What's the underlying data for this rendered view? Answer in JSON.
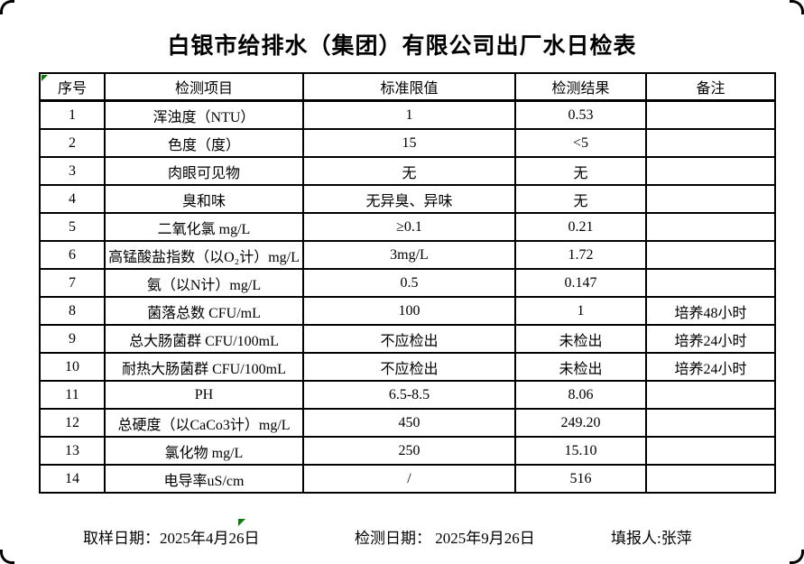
{
  "title": "白银市给排水（集团）有限公司出厂水日检表",
  "table": {
    "columns": [
      "序号",
      "检测项目",
      "标准限值",
      "检测结果",
      "备注"
    ],
    "rows": [
      [
        "1",
        "浑浊度（NTU）",
        "1",
        "0.53",
        ""
      ],
      [
        "2",
        "色度（度）",
        "15",
        "<5",
        ""
      ],
      [
        "3",
        "肉眼可见物",
        "无",
        "无",
        ""
      ],
      [
        "4",
        "臭和味",
        "无异臭、异味",
        "无",
        ""
      ],
      [
        "5",
        "二氧化氯 mg/L",
        "≥0.1",
        "0.21",
        ""
      ],
      [
        "6",
        "高锰酸盐指数（以O₂计）mg/L",
        "3mg/L",
        "1.72",
        ""
      ],
      [
        "7",
        "氨（以N计）mg/L",
        "0.5",
        "0.147",
        ""
      ],
      [
        "8",
        "菌落总数 CFU/mL",
        "100",
        "1",
        "培养48小时"
      ],
      [
        "9",
        "总大肠菌群 CFU/100mL",
        "不应检出",
        "未检出",
        "培养24小时"
      ],
      [
        "10",
        "耐热大肠菌群 CFU/100mL",
        "不应检出",
        "未检出",
        "培养24小时"
      ],
      [
        "11",
        "PH",
        "6.5-8.5",
        "8.06",
        ""
      ],
      [
        "12",
        "总硬度（以CaCo3计）mg/L",
        "450",
        "249.20",
        ""
      ],
      [
        "13",
        "氯化物 mg/L",
        "250",
        "15.10",
        ""
      ],
      [
        "14",
        "电导率uS/cm",
        "/",
        "516",
        ""
      ]
    ]
  },
  "footer": {
    "sample_date": "取样日期：2025年4月26日",
    "test_date": "检测日期： 2025年9月26日",
    "reporter": "填报人:张萍"
  },
  "icons": {
    "header_cell_flag": "green-triangle-indicator",
    "below_table_marker": "green-triangle-indicator"
  },
  "colors": {
    "indicator_green": "#0f7b0f",
    "border": "#000000",
    "background": "#ffffff"
  }
}
